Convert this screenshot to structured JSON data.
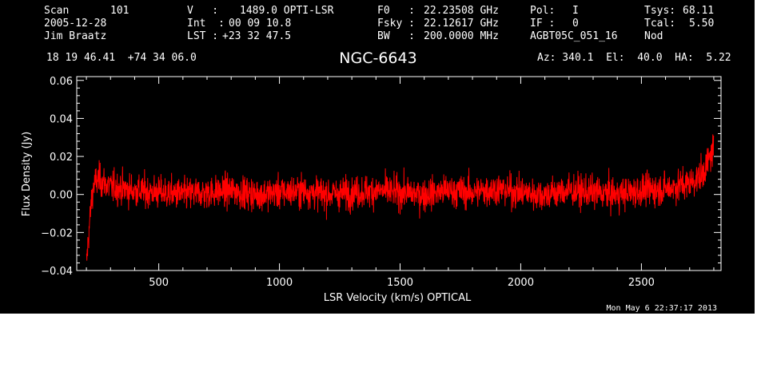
{
  "header": {
    "row1": {
      "scan_label": "Scan",
      "scan_value": "101",
      "v_label": "V   :",
      "v_value": "1489.0 OPTI-LSR",
      "f0_label": "F0   :",
      "f0_value": "22.23508 GHz",
      "pol_label": "Pol:",
      "pol_value": "I",
      "tsys_label": "Tsys:",
      "tsys_value": "68.11"
    },
    "row2": {
      "date": "2005-12-28",
      "int_label": "Int  :",
      "int_value": "00 09 10.8",
      "fsky_label": "Fsky :",
      "fsky_value": "22.12617 GHz",
      "if_label": "IF :",
      "if_value": "0",
      "tcal_label": "Tcal:",
      "tcal_value": "5.50"
    },
    "row3": {
      "observer": "Jim Braatz",
      "lst_label": "LST :",
      "lst_value": "+23 32 47.5",
      "bw_label": "BW   :",
      "bw_value": "200.0000 MHz",
      "project": "AGBT05C_051_16",
      "procedure": "Nod"
    },
    "coords": "18 19 46.41  +74 34 06.0",
    "source": "NGC-6643",
    "az_el_ha": "Az: 340.1  El:  40.0  HA:  5.22",
    "timestamp": "Mon May  6 22:37:17 2013"
  },
  "colors": {
    "background": "#000000",
    "axes": "#ffffff",
    "trace": "#ff0000"
  },
  "chart_data": {
    "type": "line",
    "title": "NGC-6643",
    "xlabel": "LSR Velocity (km/s) OPTICAL",
    "ylabel": "Flux Density (Jy)",
    "xlim": [
      160,
      2830
    ],
    "ylim": [
      -0.04,
      0.062
    ],
    "x_ticks": [
      500,
      1000,
      1500,
      2000,
      2500
    ],
    "x_tick_labels": [
      "500",
      "1000",
      "1500",
      "2000",
      "2500"
    ],
    "y_ticks": [
      -0.04,
      -0.02,
      0.0,
      0.02,
      0.04,
      0.06
    ],
    "y_tick_labels": [
      "−0.04",
      "−0.02",
      "0.00",
      "0.02",
      "0.04",
      "0.06"
    ],
    "grid": false,
    "series": [
      {
        "x": [
          200,
          210,
          220,
          230,
          250,
          300,
          400,
          500,
          600,
          700,
          800,
          900,
          1000,
          1100,
          1200,
          1300,
          1400,
          1500,
          1600,
          1700,
          1800,
          1900,
          2000,
          2100,
          2200,
          2300,
          2400,
          2500,
          2600,
          2700,
          2750,
          2780,
          2800
        ],
        "y": [
          -0.037,
          -0.02,
          -0.005,
          0.005,
          0.008,
          0.004,
          0.002,
          0.001,
          0.0,
          0.001,
          0.002,
          0.0,
          0.001,
          0.002,
          0.0,
          0.001,
          0.002,
          0.001,
          0.0,
          0.002,
          0.001,
          0.003,
          0.001,
          0.0,
          0.002,
          0.001,
          0.0,
          0.002,
          0.003,
          0.006,
          0.01,
          0.018,
          0.025
        ],
        "noise_rms": 0.008
      }
    ]
  }
}
